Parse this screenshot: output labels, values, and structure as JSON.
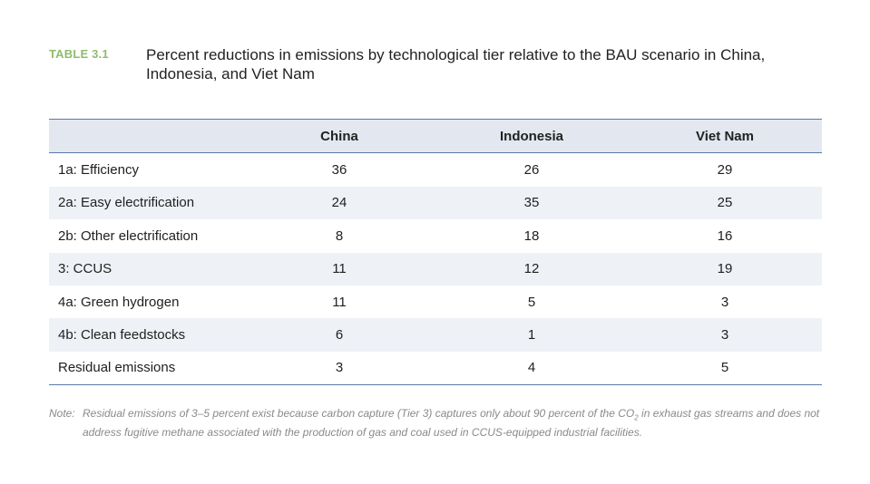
{
  "header": {
    "label": "TABLE 3.1",
    "title": "Percent reductions in emissions by technological tier relative to the BAU scenario in China, Indonesia, and Viet Nam"
  },
  "table": {
    "columns": [
      "",
      "China",
      "Indonesia",
      "Viet Nam"
    ],
    "rows": [
      [
        "1a: Efficiency",
        "36",
        "26",
        "29"
      ],
      [
        "2a: Easy electrification",
        "24",
        "35",
        "25"
      ],
      [
        "2b: Other electrification",
        "8",
        "18",
        "16"
      ],
      [
        "3: CCUS",
        "11",
        "12",
        "19"
      ],
      [
        "4a: Green hydrogen",
        "11",
        "5",
        "3"
      ],
      [
        "4b: Clean feedstocks",
        "6",
        "1",
        "3"
      ],
      [
        "Residual emissions",
        "3",
        "4",
        "5"
      ]
    ]
  },
  "note": {
    "label": "Note:",
    "text_before": "Residual emissions of 3–5 percent exist because carbon capture (Tier 3) captures only about 90 percent of the CO",
    "subscript": "2",
    "text_after": " in exhaust gas streams and does not address fugitive methane associated with the production of gas and coal used in CCUS-equipped industrial facilities."
  },
  "colors": {
    "label": "#8fbc6e",
    "rule": "#5a7aa8",
    "header_fill": "#e3e8f0",
    "band_fill": "#eef2f7"
  }
}
